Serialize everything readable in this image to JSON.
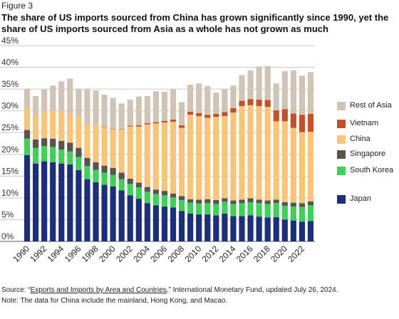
{
  "figure_label": "Figure 3",
  "title": "The share of US imports sourced from China has grown significantly since 1990, yet the share of US imports sourced from Asia as a whole has not grown as much",
  "source": {
    "prefix": "Source: “",
    "link_text": "Exports and Imports by Area and Countries",
    "suffix": ",” International Monetary Fund, updated July 26, 2024."
  },
  "note": "Note: The data for China include the mainland, Hong Kong, and Macao.",
  "colors": {
    "Japan": "#1e2f7a",
    "South Korea": "#3fcf5a",
    "Singapore": "#5a534e",
    "China": "#f7c57a",
    "Vietnam": "#c2502b",
    "Rest of Asia": "#cfc4b6"
  },
  "chart_data": {
    "type": "bar",
    "stacked": true,
    "x": [
      1990,
      1991,
      1992,
      1993,
      1994,
      1995,
      1996,
      1997,
      1998,
      1999,
      2000,
      2001,
      2002,
      2003,
      2004,
      2005,
      2006,
      2007,
      2008,
      2009,
      2010,
      2011,
      2012,
      2013,
      2014,
      2015,
      2016,
      2017,
      2018,
      2019,
      2020,
      2021,
      2022,
      2023
    ],
    "x_tick_labels": [
      "1990",
      "1992",
      "1994",
      "1996",
      "1998",
      "2000",
      "2002",
      "2004",
      "2006",
      "2008",
      "2010",
      "2012",
      "2014",
      "2016",
      "2018",
      "2020",
      "2022"
    ],
    "y_ticks": [
      "0%",
      "5%",
      "10%",
      "15%",
      "20%",
      "25%",
      "30%",
      "35%",
      "40%",
      "45%"
    ],
    "ylim": [
      0,
      45
    ],
    "y_format": "percent",
    "grid": true,
    "legend_position": "right",
    "legend_order": [
      "Rest of Asia",
      "Vietnam",
      "China",
      "Singapore",
      "South Korea",
      "Japan"
    ],
    "series": [
      {
        "name": "Japan",
        "values": [
          19.8,
          17.9,
          18.4,
          18.2,
          17.9,
          17.7,
          16.4,
          14.3,
          13.6,
          13.0,
          12.6,
          11.7,
          10.6,
          9.8,
          8.8,
          8.3,
          8.0,
          7.8,
          7.0,
          6.4,
          6.2,
          6.2,
          6.0,
          6.4,
          5.8,
          5.8,
          6.0,
          5.7,
          5.5,
          5.6,
          5.0,
          4.8,
          4.5,
          4.7
        ]
      },
      {
        "name": "South Korea",
        "values": [
          3.8,
          3.6,
          3.5,
          3.5,
          3.2,
          3.0,
          3.0,
          3.0,
          2.8,
          2.8,
          2.7,
          2.6,
          2.6,
          2.6,
          2.6,
          2.6,
          2.6,
          2.3,
          2.5,
          2.5,
          2.5,
          2.6,
          2.6,
          2.7,
          2.8,
          3.0,
          3.0,
          3.1,
          3.1,
          3.2,
          3.2,
          3.2,
          3.4,
          3.6
        ]
      },
      {
        "name": "Singapore",
        "values": [
          2.0,
          1.9,
          1.8,
          1.9,
          2.0,
          2.0,
          2.1,
          1.9,
          1.8,
          1.6,
          1.6,
          1.5,
          1.2,
          1.1,
          1.1,
          1.0,
          1.0,
          0.9,
          0.9,
          0.8,
          0.9,
          0.9,
          0.9,
          0.8,
          0.8,
          0.8,
          0.9,
          0.8,
          0.8,
          0.8,
          0.8,
          0.9,
          0.9,
          0.9
        ]
      },
      {
        "name": "China",
        "values": [
          5.1,
          5.6,
          6.3,
          6.3,
          6.8,
          6.6,
          7.2,
          7.8,
          8.6,
          8.9,
          8.8,
          9.9,
          12.0,
          12.9,
          14.4,
          15.2,
          15.7,
          16.5,
          15.7,
          19.4,
          19.2,
          18.7,
          19.1,
          18.9,
          20.2,
          21.5,
          21.4,
          21.5,
          21.5,
          18.0,
          18.6,
          17.2,
          16.3,
          16.0
        ]
      },
      {
        "name": "Vietnam",
        "values": [
          0.0,
          0.0,
          0.0,
          0.0,
          0.0,
          0.0,
          0.0,
          0.0,
          0.0,
          0.1,
          0.1,
          0.1,
          0.2,
          0.3,
          0.3,
          0.3,
          0.4,
          0.5,
          0.6,
          0.7,
          0.7,
          0.7,
          0.7,
          0.9,
          1.0,
          1.2,
          1.4,
          1.5,
          1.6,
          2.5,
          2.8,
          3.3,
          4.0,
          4.1
        ]
      },
      {
        "name": "Rest of Asia",
        "values": [
          4.4,
          4.4,
          4.9,
          5.9,
          6.9,
          8.1,
          6.3,
          8.0,
          7.9,
          7.3,
          7.2,
          5.9,
          6.0,
          6.6,
          6.2,
          7.1,
          6.7,
          6.9,
          5.3,
          6.2,
          6.8,
          6.6,
          4.9,
          5.4,
          5.2,
          5.9,
          6.6,
          7.6,
          7.8,
          6.2,
          8.7,
          9.9,
          9.0,
          9.6
        ]
      }
    ]
  }
}
